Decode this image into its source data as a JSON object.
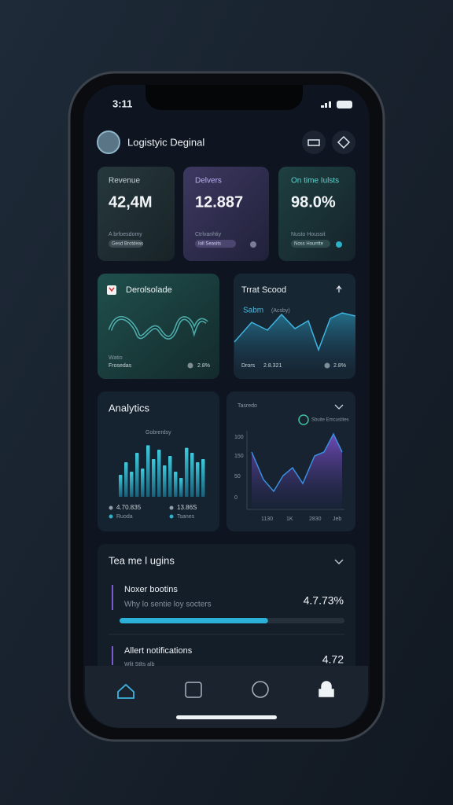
{
  "status": {
    "time": "3:11"
  },
  "header": {
    "title": "Logistyic Deginal"
  },
  "stats": [
    {
      "label": "Revenue",
      "value": "42,4M",
      "note": "A brfoesdomy",
      "tag": "Gesd Brotdeas"
    },
    {
      "label": "Delvers",
      "value": "12.887",
      "note": "Ctrlvanhtiy",
      "tag": "Ioll Seasits"
    },
    {
      "label": "On time Iulsts",
      "value": "98.0%",
      "note": "Nusto Houssit",
      "tag": "Noss Hourrtte"
    }
  ],
  "panels": [
    {
      "title": "Derolsolade",
      "note": "Watio",
      "caption": "Frosedas",
      "value": "2.8%"
    },
    {
      "title": "Trrat Scood",
      "legend": "Sabm",
      "legend_note": "(Acsby)",
      "caption": "Drors",
      "caption_value": "2.8.321",
      "value": "2.8%"
    }
  ],
  "analytics": {
    "title": "Analytics",
    "subtitle": "Gobrerdsy",
    "bars": [
      35,
      55,
      40,
      70,
      45,
      82,
      60,
      75,
      50,
      65,
      40,
      30,
      78,
      70,
      55,
      60
    ],
    "stats": [
      {
        "value": "4.70.835",
        "label": "Ruoda"
      },
      {
        "value": "13.86S",
        "label": "Tsanes"
      }
    ]
  },
  "trend": {
    "header": "Tasredo",
    "legend": "Sbuite Emcuslites",
    "y_labels": [
      "100",
      "150",
      "50",
      "0"
    ],
    "x_labels": [
      "1130",
      "1K",
      "2830",
      "Jeb"
    ]
  },
  "team": {
    "title": "Tea me l ugins",
    "items": [
      {
        "name": "Noxer bootins",
        "detail": "Why lo sentie loy socters",
        "value": "4.7.73%",
        "progress": 0.66
      },
      {
        "name": "Allert notifications",
        "detail": "Wlit Stlts alb",
        "value": "4.72"
      }
    ]
  }
}
